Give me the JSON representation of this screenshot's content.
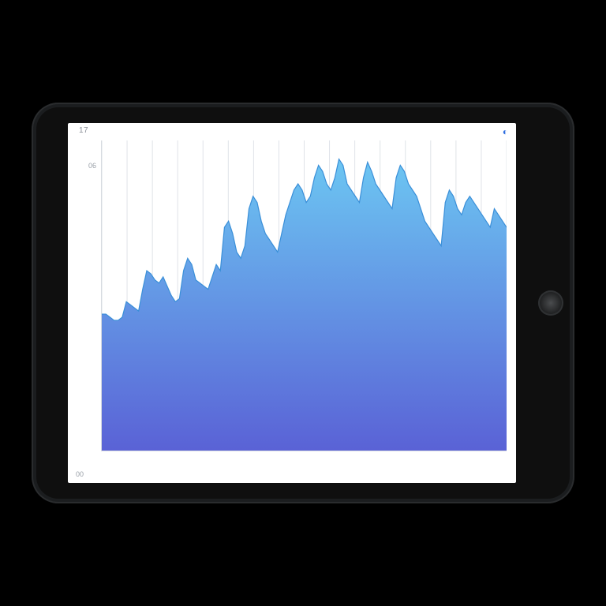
{
  "page": {
    "background_color": "#000000"
  },
  "tablet": {
    "frame_color": "#1b1d1f",
    "inner_color": "#0f0f0f",
    "screen_color": "#ffffff",
    "home_button_color": "#2f3133"
  },
  "header": {
    "top_left_label": "17",
    "top_right_glyph": "◐"
  },
  "footer": {
    "bottom_left_label": "00"
  },
  "chart": {
    "type": "area",
    "background_color": "#ffffff",
    "axis_color": "#d7dbe0",
    "label_color": "#9aa0a8",
    "label_fontsize": 9,
    "grid_vertical": true,
    "grid_color": "#dfe3e8",
    "grid_count": 16,
    "fill_gradient_top": "#6cc6f2",
    "fill_gradient_bottom": "#5a62d6",
    "stroke_color": "#3a8fd8",
    "stroke_width": 1.2,
    "ylim": [
      0,
      100
    ],
    "yticks": [
      {
        "pos": 0.0,
        "label": ""
      },
      {
        "pos": 0.12,
        "label": ""
      },
      {
        "pos": 0.24,
        "label": ""
      },
      {
        "pos": 0.38,
        "label": ""
      },
      {
        "pos": 0.52,
        "label": ""
      },
      {
        "pos": 0.66,
        "label": ""
      },
      {
        "pos": 0.8,
        "label": ""
      },
      {
        "pos": 0.92,
        "label": "06"
      }
    ],
    "xticks": [
      {
        "pos": 0.02,
        "label": ""
      },
      {
        "pos": 0.12,
        "label": ""
      },
      {
        "pos": 0.22,
        "label": ""
      },
      {
        "pos": 0.32,
        "label": ""
      },
      {
        "pos": 0.42,
        "label": ""
      },
      {
        "pos": 0.52,
        "label": ""
      },
      {
        "pos": 0.62,
        "label": ""
      },
      {
        "pos": 0.72,
        "label": ""
      },
      {
        "pos": 0.82,
        "label": ""
      },
      {
        "pos": 0.92,
        "label": ""
      },
      {
        "pos": 0.98,
        "label": ""
      }
    ],
    "series": [
      44,
      44,
      43,
      42,
      42,
      43,
      48,
      47,
      46,
      45,
      52,
      58,
      57,
      55,
      54,
      56,
      53,
      50,
      48,
      49,
      58,
      62,
      60,
      55,
      54,
      53,
      52,
      56,
      60,
      58,
      72,
      74,
      70,
      64,
      62,
      66,
      78,
      82,
      80,
      74,
      70,
      68,
      66,
      64,
      70,
      76,
      80,
      84,
      86,
      84,
      80,
      82,
      88,
      92,
      90,
      86,
      84,
      88,
      94,
      92,
      86,
      84,
      82,
      80,
      88,
      93,
      90,
      86,
      84,
      82,
      80,
      78,
      88,
      92,
      90,
      86,
      84,
      82,
      78,
      74,
      72,
      70,
      68,
      66,
      80,
      84,
      82,
      78,
      76,
      80,
      82,
      80,
      78,
      76,
      74,
      72,
      78,
      76,
      74,
      72
    ]
  }
}
